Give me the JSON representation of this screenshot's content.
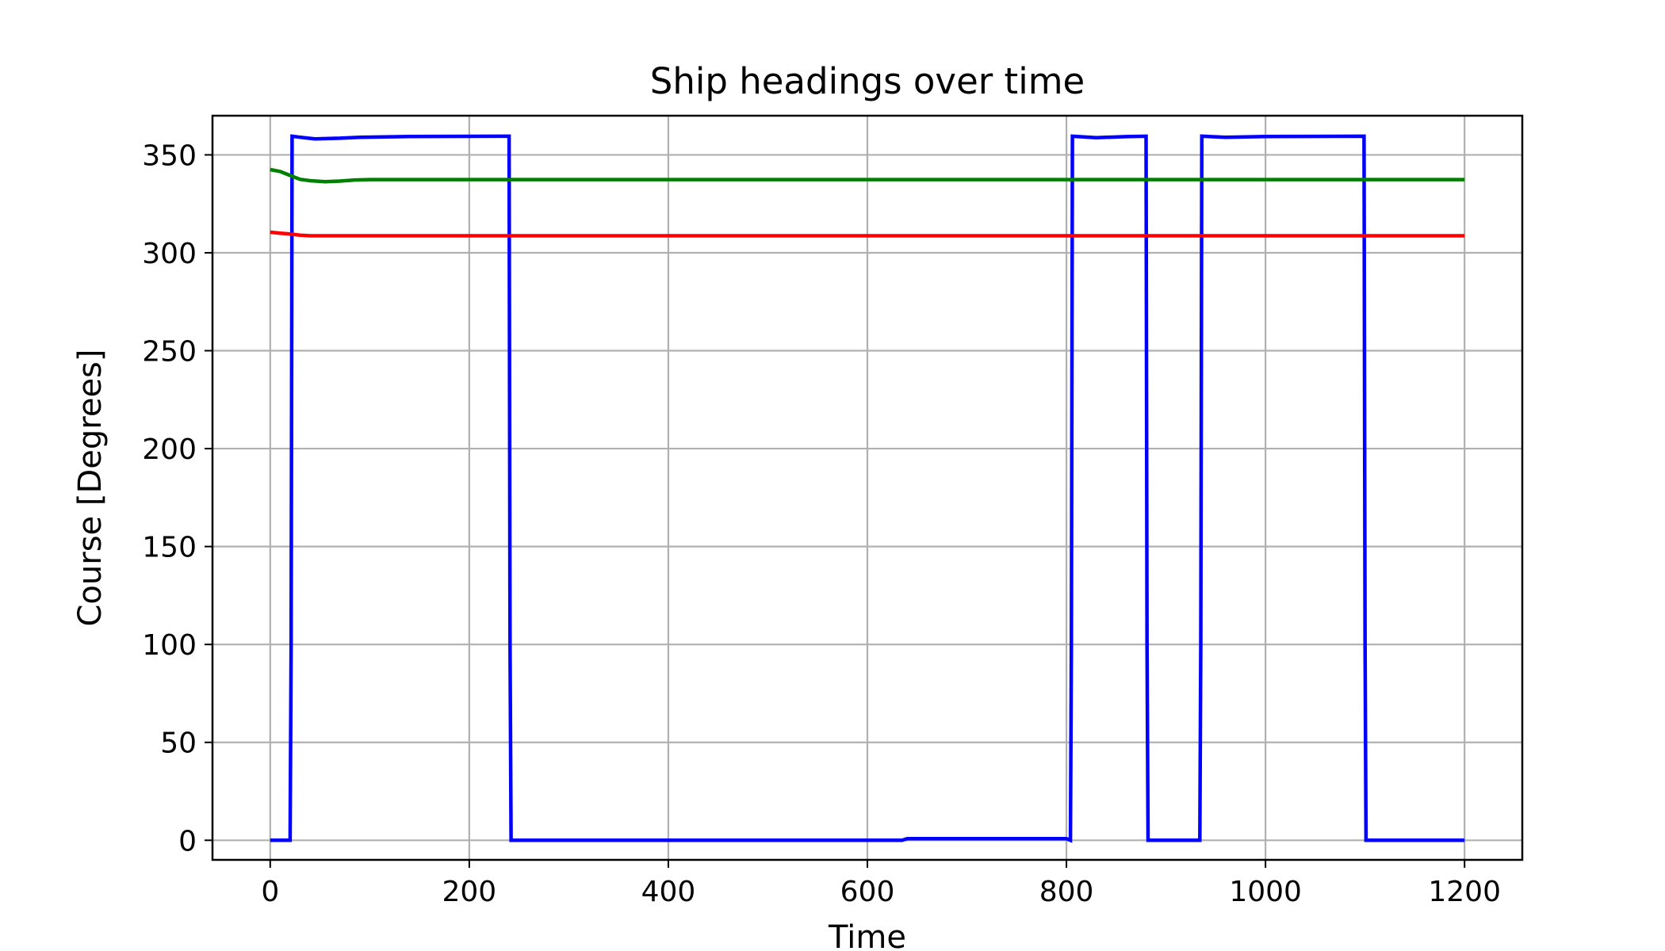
{
  "chart_data": {
    "type": "line",
    "title": "Ship headings over time",
    "xlabel": "Time",
    "ylabel": "Course [Degrees]",
    "xlim": [
      -58,
      1258
    ],
    "ylim": [
      -10,
      370
    ],
    "xticks": [
      0,
      200,
      400,
      600,
      800,
      1000,
      1200
    ],
    "yticks": [
      0,
      50,
      100,
      150,
      200,
      250,
      300,
      350
    ],
    "grid": true,
    "series": [
      {
        "color": "#0000ff",
        "x": [
          0,
          20,
          21,
          22,
          30,
          45,
          70,
          90,
          140,
          240,
          241,
          242,
          635,
          640,
          800,
          804,
          805,
          806,
          830,
          860,
          880,
          881,
          882,
          934,
          935,
          936,
          960,
          1000,
          1099,
          1100,
          1101,
          1200
        ],
        "y": [
          0,
          0,
          100,
          359.5,
          359,
          358.2,
          358.5,
          359,
          359.4,
          359.5,
          100,
          0,
          0,
          0.8,
          0.8,
          0,
          100,
          359.5,
          358.8,
          359.3,
          359.5,
          100,
          0,
          0,
          100,
          359.5,
          359,
          359.4,
          359.5,
          100,
          0,
          0
        ]
      },
      {
        "color": "#008000",
        "x": [
          0,
          10,
          20,
          30,
          40,
          55,
          70,
          85,
          100,
          1200
        ],
        "y": [
          342.5,
          341.5,
          339.5,
          337.5,
          336.8,
          336.3,
          336.6,
          337.2,
          337.4,
          337.4
        ]
      },
      {
        "color": "#ff0000",
        "x": [
          0,
          10,
          20,
          30,
          40,
          1200
        ],
        "y": [
          310.5,
          310,
          309.6,
          309,
          308.7,
          308.7
        ]
      }
    ]
  }
}
